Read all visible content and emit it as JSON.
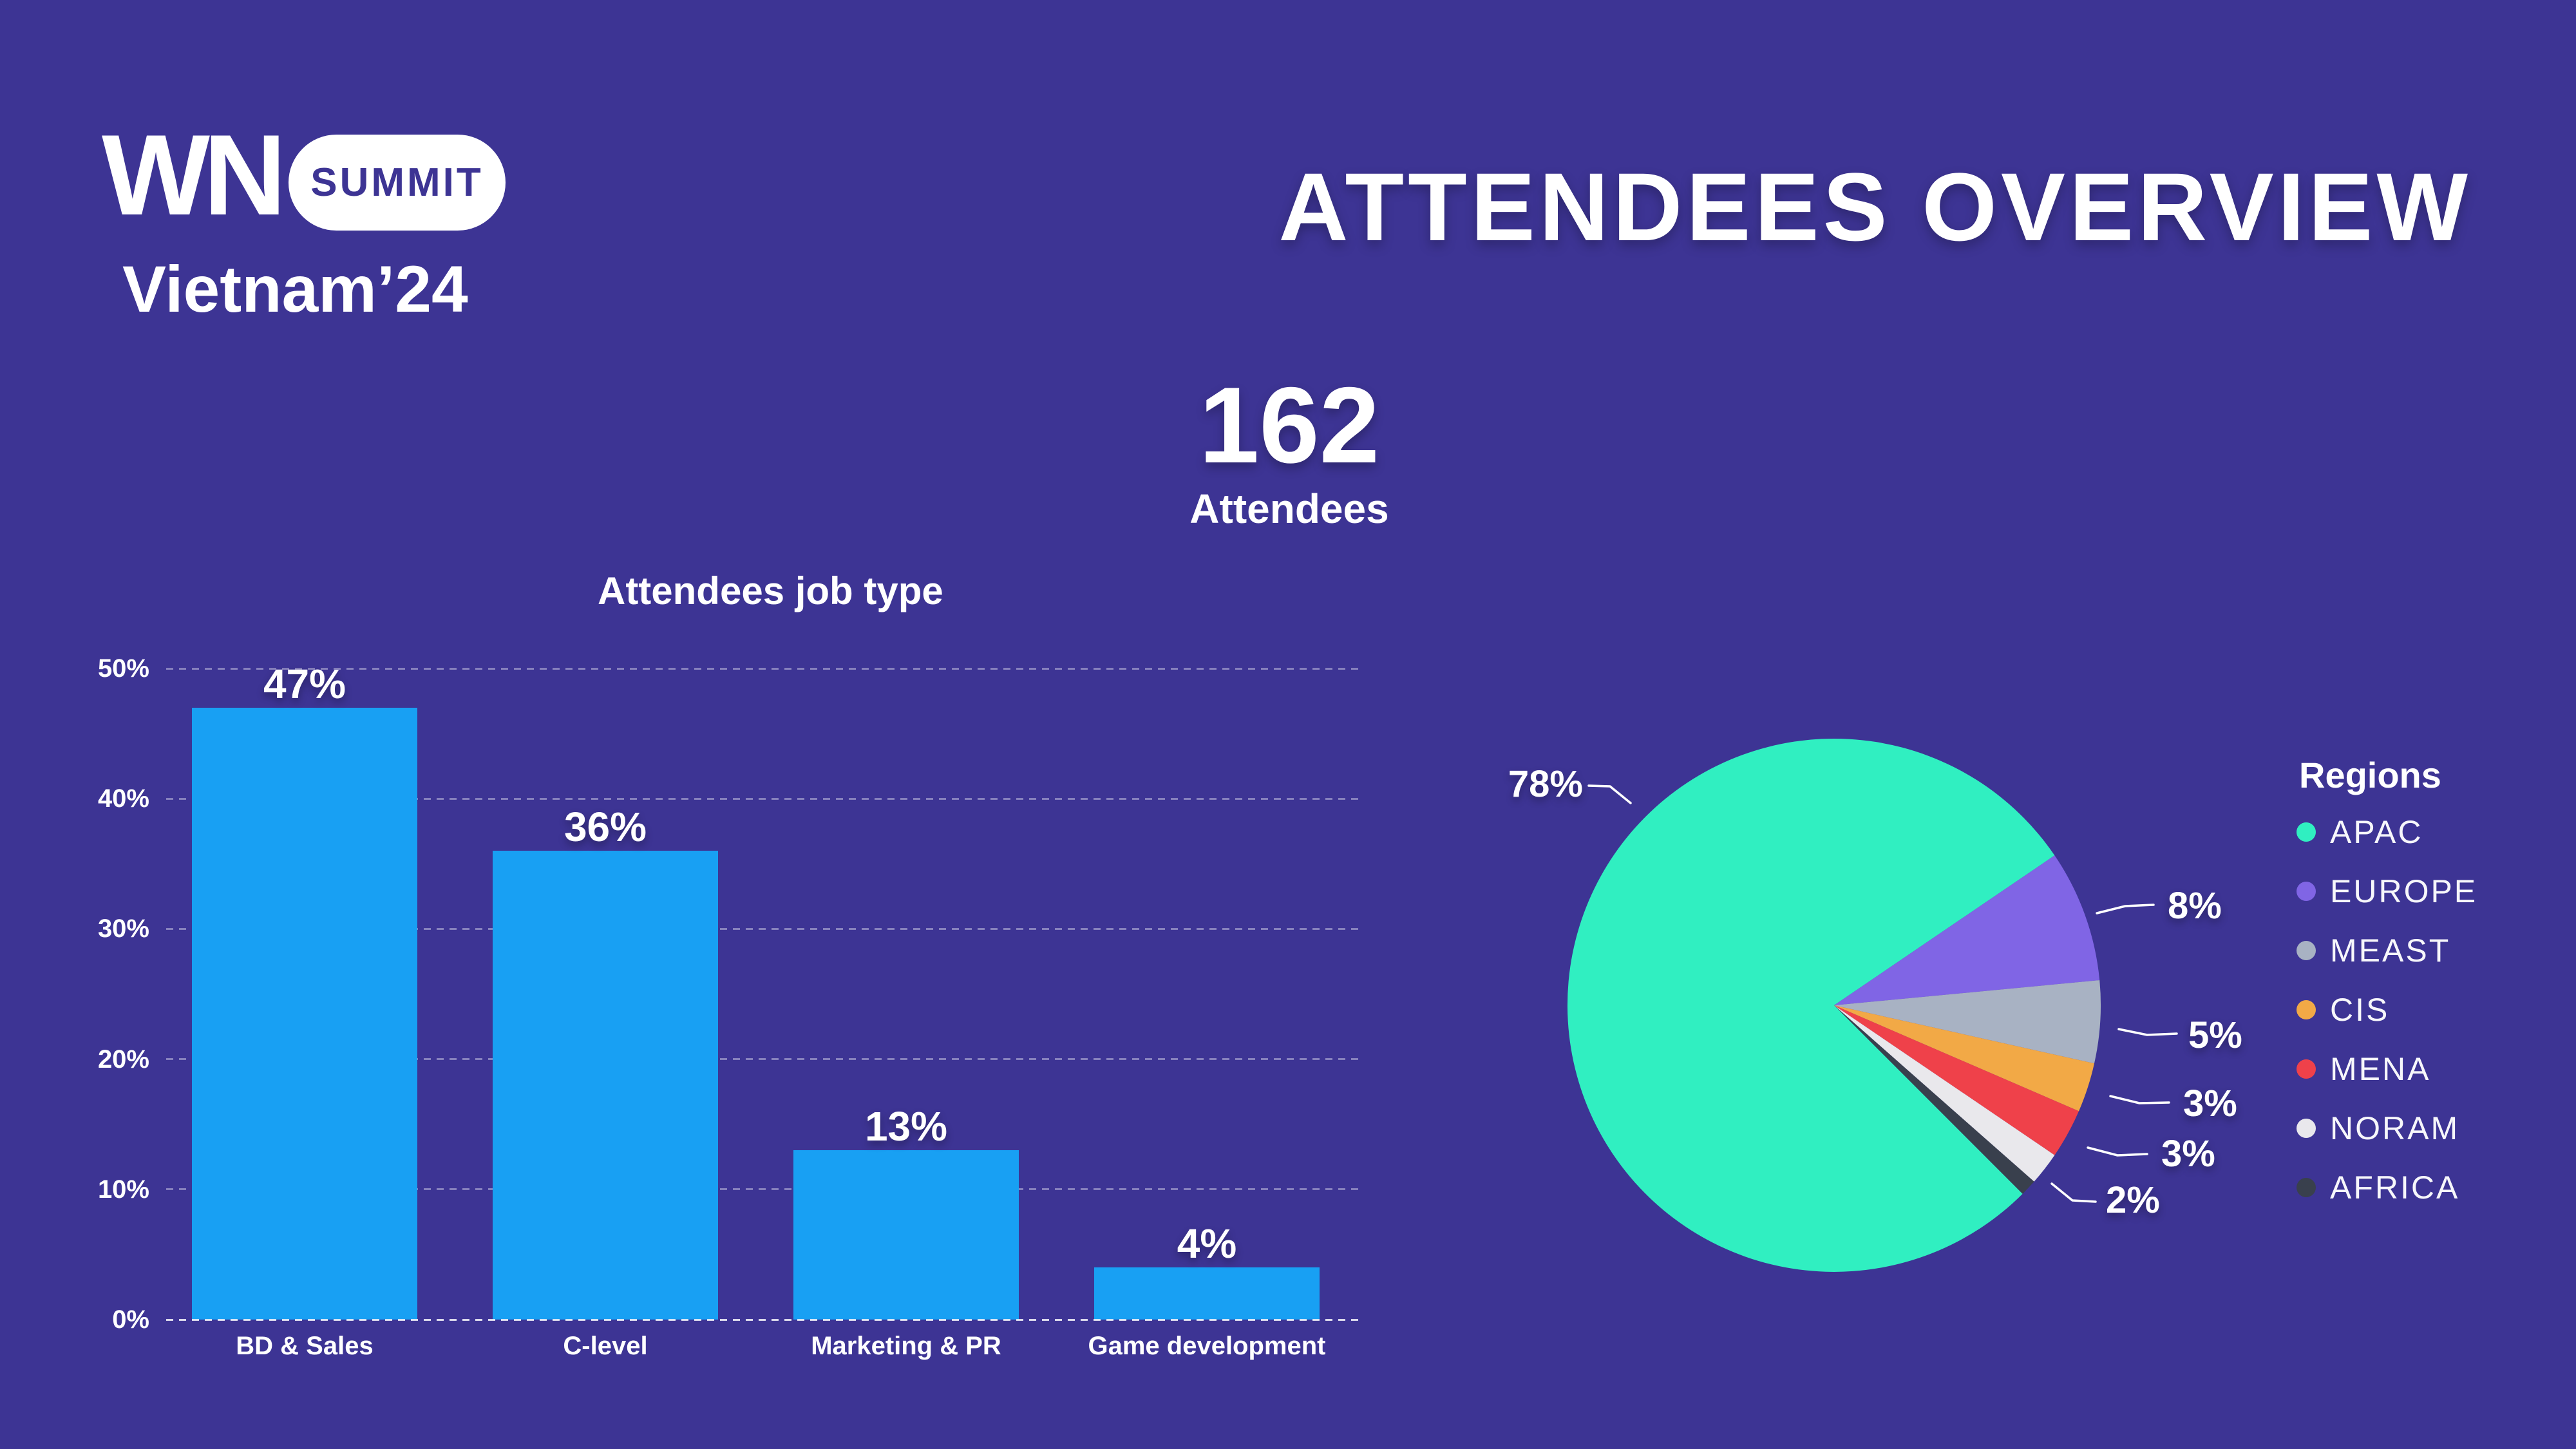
{
  "theme": {
    "background": "#3d3494",
    "text": "#ffffff",
    "bar_color": "#18a0f3",
    "grid_color": "rgba(255,255,255,0.38)",
    "baseline_color": "rgba(255,255,255,0.82)",
    "badge_bg": "#ffffff",
    "badge_text": "#3d3494",
    "leader_line_color": "#ffffff"
  },
  "logo": {
    "wordmark": "WN",
    "badge": "SUMMIT",
    "event": "Vietnam’24"
  },
  "header": {
    "title": "ATTENDEES OVERVIEW"
  },
  "total": {
    "value": "162",
    "label": "Attendees"
  },
  "chart_data": [
    {
      "type": "bar",
      "title": "Attendees job type",
      "categories": [
        "BD & Sales",
        "C-level",
        "Marketing & PR",
        "Game development"
      ],
      "values": [
        47,
        36,
        13,
        4
      ],
      "value_labels": [
        "47%",
        "36%",
        "13%",
        "4%"
      ],
      "yticks": [
        "0%",
        "10%",
        "20%",
        "30%",
        "40%",
        "50%"
      ],
      "ylim": [
        0,
        50
      ],
      "xlabel": "",
      "ylabel": "",
      "grid": "horizontal-dashed",
      "bar_color": "#18a0f3"
    },
    {
      "type": "pie",
      "legend_title": "Regions",
      "legend_position": "right",
      "start_angle_deg_cw_from_top": 135,
      "series": [
        {
          "name": "APAC",
          "value": 78,
          "label": "78%",
          "color": "#30efc1"
        },
        {
          "name": "EUROPE",
          "value": 8,
          "label": "8%",
          "color": "#8065e5"
        },
        {
          "name": "MEAST",
          "value": 5,
          "label": "5%",
          "color": "#a8b2c3"
        },
        {
          "name": "CIS",
          "value": 3,
          "label": "3%",
          "color": "#f2a946"
        },
        {
          "name": "MENA",
          "value": 3,
          "label": "3%",
          "color": "#ef414a"
        },
        {
          "name": "NORAM",
          "value": 2,
          "label": "2%",
          "color": "#e9e8ec"
        },
        {
          "name": "AFRICA",
          "value": 1,
          "label": "",
          "color": "#39404d"
        }
      ]
    }
  ]
}
